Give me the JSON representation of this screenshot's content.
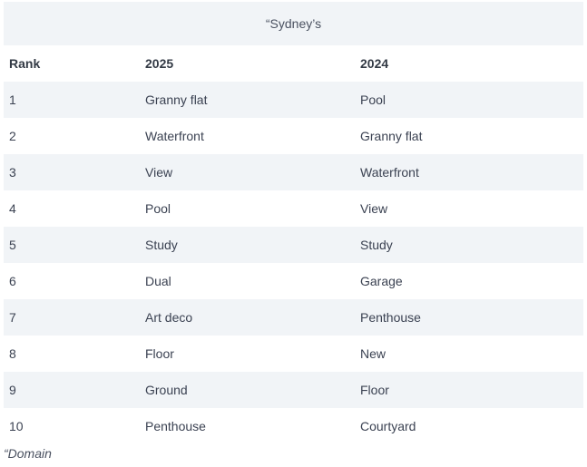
{
  "title": "“Sydney’s",
  "headers": [
    "Rank",
    "2025",
    "2024"
  ],
  "rows": [
    [
      "1",
      "Granny flat",
      "Pool"
    ],
    [
      "2",
      "Waterfront",
      "Granny flat"
    ],
    [
      "3",
      "View",
      "Waterfront"
    ],
    [
      "4",
      "Pool",
      "View"
    ],
    [
      "5",
      "Study",
      "Study"
    ],
    [
      "6",
      "Dual",
      "Garage"
    ],
    [
      "7",
      "Art deco",
      "Penthouse"
    ],
    [
      "8",
      "Floor",
      "New"
    ],
    [
      "9",
      "Ground",
      "Floor"
    ],
    [
      "10",
      "Penthouse",
      "Courtyard"
    ]
  ],
  "caption": "“Domain",
  "colors": {
    "stripe": "#f1f4f7",
    "text": "#3b4252"
  }
}
